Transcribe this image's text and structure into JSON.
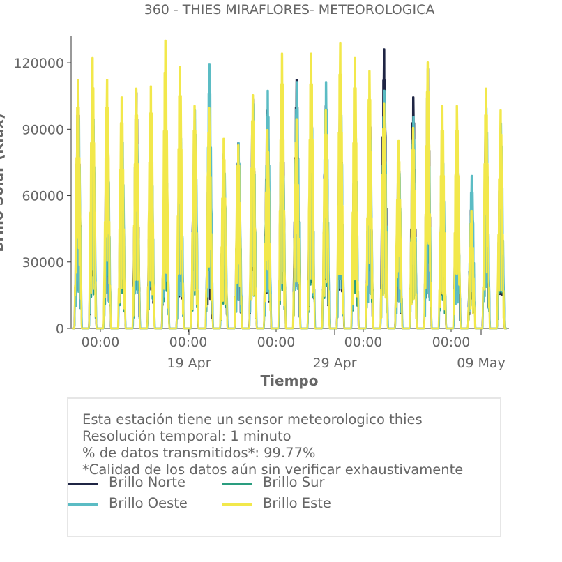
{
  "chart_data": {
    "type": "line",
    "title": "360 - THIES MIRAFLORES- METEOROLOGICA",
    "xlabel": "Tiempo",
    "ylabel": "Brillo Solar (Klux)",
    "ylim": [
      0,
      132000
    ],
    "yticks": [
      "0",
      "30000",
      "60000",
      "90000",
      "120000"
    ],
    "x_tick_labels": [
      "00:00",
      "00:00",
      "00:00",
      "00:00",
      "00:00"
    ],
    "x_date_labels": [
      "19 Apr",
      "29 Apr",
      "09 May"
    ],
    "x_start": "2024-04-10",
    "x_end": "2024-05-10",
    "days": [
      "04-10",
      "04-11",
      "04-12",
      "04-13",
      "04-14",
      "04-15",
      "04-16",
      "04-17",
      "04-18",
      "04-19",
      "04-20",
      "04-21",
      "04-22",
      "04-23",
      "04-24",
      "04-25",
      "04-26",
      "04-27",
      "04-28",
      "04-29",
      "04-30",
      "05-01",
      "05-02",
      "05-03",
      "05-04",
      "05-05",
      "05-06",
      "05-07",
      "05-08",
      "05-09"
    ],
    "series": [
      {
        "name": "Brillo Norte",
        "color": "#1f2544",
        "daily_peak": [
          110000,
          105000,
          97000,
          93000,
          108000,
          95000,
          97000,
          97000,
          98000,
          91000,
          80000,
          85000,
          105000,
          100000,
          111000,
          114000,
          104000,
          102000,
          111000,
          97000,
          104000,
          128000,
          81000,
          106000,
          119000,
          84000,
          80000,
          61000,
          100000,
          92000
        ]
      },
      {
        "name": "Brillo Sur",
        "color": "#2a9d7f",
        "daily_peak": [
          106000,
          104000,
          97000,
          88000,
          95000,
          90000,
          96000,
          96000,
          96000,
          88000,
          78000,
          84000,
          103000,
          98000,
          102000,
          110000,
          102000,
          100000,
          109000,
          95000,
          96000,
          109000,
          78000,
          95000,
          100000,
          82000,
          77000,
          58000,
          98000,
          88000
        ]
      },
      {
        "name": "Brillo Oeste",
        "color": "#5bbcc4",
        "daily_peak": [
          108000,
          108000,
          98000,
          96000,
          95000,
          95000,
          97000,
          98000,
          100000,
          121000,
          80000,
          85000,
          103000,
          109000,
          100000,
          113000,
          103000,
          113000,
          110000,
          98000,
          97000,
          109000,
          80000,
          97000,
          108000,
          85000,
          78000,
          70000,
          101000,
          94000
        ]
      },
      {
        "name": "Brillo Este",
        "color": "#f2e84b",
        "daily_peak": [
          114000,
          124000,
          114000,
          106000,
          110000,
          111000,
          132000,
          120000,
          102000,
          101000,
          87000,
          84000,
          107000,
          91000,
          126000,
          96000,
          126000,
          100000,
          131000,
          124000,
          118000,
          103000,
          86000,
          92000,
          122000,
          102000,
          102000,
          54000,
          110000,
          100000
        ]
      }
    ],
    "grid": false
  },
  "info_box": {
    "line1": "Esta estación tiene un sensor meteorologico thies",
    "line2": "Resolución temporal: 1 minuto",
    "line3": "% de datos transmitidos*: 99.77%",
    "line4": "*Calidad de los datos aún sin verificar exhaustivamente"
  }
}
